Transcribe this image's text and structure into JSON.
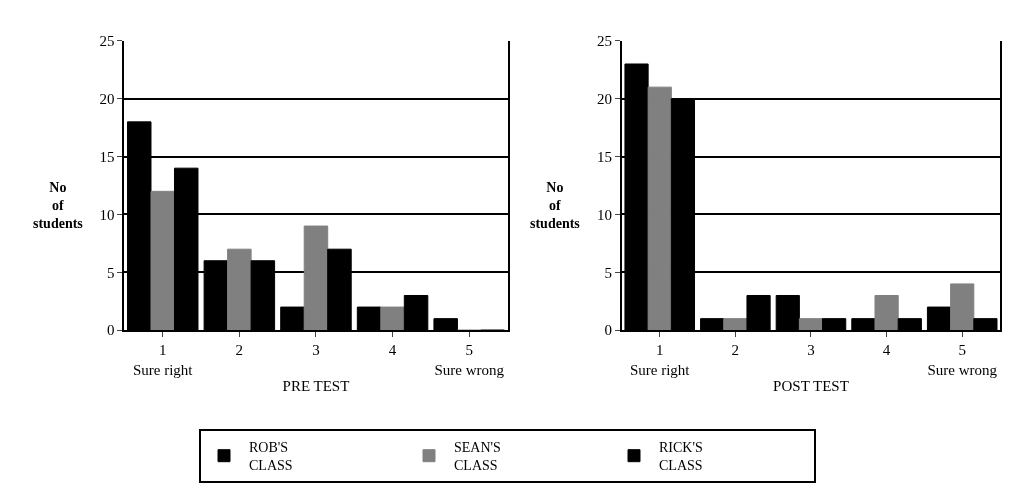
{
  "chart_data": [
    {
      "type": "bar",
      "categories": [
        "1\nSure right",
        "2",
        "3",
        "4",
        "5\nSure wrong"
      ],
      "xlabel": "PRE TEST",
      "ylabel": "No\nof\nstudents",
      "ylim": [
        0,
        25
      ],
      "yticks": [
        0,
        5,
        10,
        15,
        20,
        25
      ],
      "grid": "y",
      "legend": "bottom",
      "series": [
        {
          "name": "ROB'S\nCLASS",
          "color": "#000000",
          "values": [
            18,
            6,
            2,
            2,
            1
          ]
        },
        {
          "name": "SEAN'S\nCLASS",
          "color": "#808080",
          "values": [
            12,
            7,
            9,
            2,
            0
          ]
        },
        {
          "name": "RICK'S\nCLASS",
          "color": "#000000",
          "values": [
            14,
            6,
            7,
            3,
            0
          ]
        }
      ]
    },
    {
      "type": "bar",
      "categories": [
        "1\nSure right",
        "2",
        "3",
        "4",
        "5\nSure wrong"
      ],
      "xlabel": "POST TEST",
      "ylabel": "No\nof\nstudents",
      "ylim": [
        0,
        25
      ],
      "yticks": [
        0,
        5,
        10,
        15,
        20,
        25
      ],
      "grid": "y",
      "legend": "bottom",
      "series": [
        {
          "name": "ROB'S\nCLASS",
          "color": "#000000",
          "values": [
            23,
            1,
            3,
            1,
            2
          ]
        },
        {
          "name": "SEAN'S\nCLASS",
          "color": "#808080",
          "values": [
            21,
            1,
            1,
            3,
            4
          ]
        },
        {
          "name": "RICK'S\nCLASS",
          "color": "#000000",
          "values": [
            20,
            3,
            1,
            1,
            1
          ]
        }
      ]
    }
  ]
}
